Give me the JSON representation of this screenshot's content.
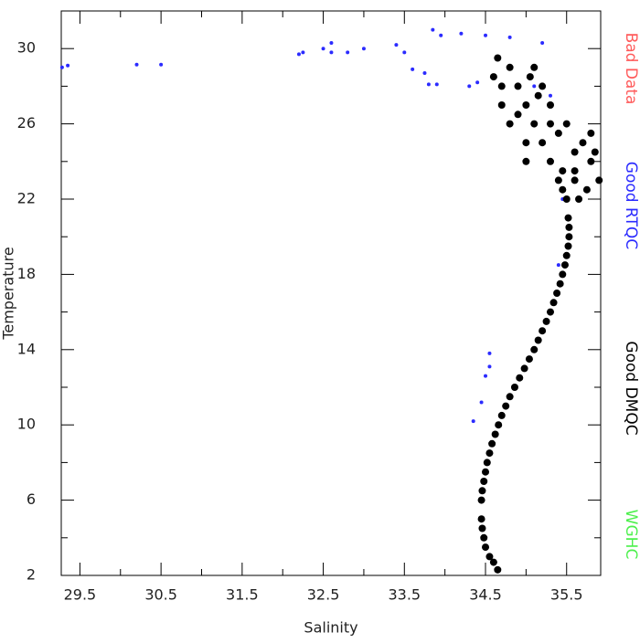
{
  "chart_data": {
    "type": "scatter",
    "x_label": "Salinity",
    "y_label": "Temperature",
    "xlim": [
      29.27,
      35.92
    ],
    "ylim": [
      2,
      32
    ],
    "xticks": [
      29.5,
      30.5,
      31.5,
      32.5,
      33.5,
      34.5,
      35.5
    ],
    "xminor": [
      30,
      31,
      32,
      33,
      34,
      35
    ],
    "yticks": [
      2,
      6,
      10,
      14,
      18,
      22,
      26,
      30
    ],
    "yminor": [
      4,
      8,
      12,
      16,
      20,
      24,
      28
    ],
    "series": [
      {
        "name": "Bad Data",
        "color": "#ff5a5a",
        "x": [],
        "values": []
      },
      {
        "name": "Good RTQC",
        "color": "#2b2bff",
        "x": [
          29.28,
          29.35,
          30.2,
          30.5,
          32.2,
          32.25,
          32.5,
          32.6,
          32.6,
          32.8,
          33.0,
          33.4,
          33.5,
          33.6,
          33.75,
          33.8,
          33.9,
          33.85,
          33.95,
          34.2,
          34.3,
          34.4,
          34.35,
          34.45,
          34.5,
          34.55,
          34.55,
          34.5,
          34.8,
          35.2,
          35.1,
          35.3,
          35.45,
          35.4
        ],
        "values": [
          29.0,
          29.1,
          29.15,
          29.15,
          29.7,
          29.8,
          30.0,
          30.3,
          29.8,
          29.8,
          30.0,
          30.2,
          29.8,
          28.9,
          28.7,
          28.1,
          28.1,
          31.0,
          30.7,
          30.8,
          28.0,
          28.2,
          10.2,
          11.2,
          12.6,
          13.1,
          13.8,
          30.7,
          30.6,
          30.3,
          28.0,
          27.5,
          22.0,
          18.5
        ]
      },
      {
        "name": "Good DMQC",
        "color": "#000000",
        "x": [
          34.65,
          34.6,
          34.55,
          34.5,
          34.48,
          34.46,
          34.45,
          34.45,
          34.46,
          34.48,
          34.5,
          34.52,
          34.55,
          34.58,
          34.62,
          34.66,
          34.7,
          34.75,
          34.8,
          34.86,
          34.92,
          34.98,
          35.04,
          35.1,
          35.15,
          35.2,
          35.25,
          35.3,
          35.34,
          35.38,
          35.42,
          35.45,
          35.48,
          35.5,
          35.52,
          35.53,
          35.53,
          35.52,
          35.5,
          35.45,
          35.4,
          35.3,
          35.2,
          35.1,
          35.0,
          34.9,
          34.8,
          35.6,
          35.8,
          35.9,
          35.7,
          35.5,
          35.3,
          34.6,
          34.7,
          35.0,
          34.9,
          35.2,
          35.4,
          35.6,
          35.8,
          35.1,
          34.7,
          35.0,
          35.3,
          35.6,
          35.75,
          35.85,
          34.8,
          35.15,
          35.45,
          35.65,
          34.65,
          35.05
        ],
        "values": [
          2.3,
          2.7,
          3.0,
          3.5,
          4.0,
          4.5,
          5.0,
          6.0,
          6.5,
          7.0,
          7.5,
          8.0,
          8.5,
          9.0,
          9.5,
          10.0,
          10.5,
          11.0,
          11.5,
          12.0,
          12.5,
          13.0,
          13.5,
          14.0,
          14.5,
          15.0,
          15.5,
          16.0,
          16.5,
          17.0,
          17.5,
          18.0,
          18.5,
          19.0,
          19.5,
          20.0,
          20.5,
          21.0,
          22.0,
          22.5,
          23.0,
          24.0,
          25.0,
          26.0,
          27.0,
          28.0,
          29.0,
          23.5,
          24.0,
          23.0,
          25.0,
          26.0,
          27.0,
          28.5,
          27.0,
          25.0,
          26.5,
          28.0,
          25.5,
          24.5,
          25.5,
          29.0,
          28.0,
          24.0,
          26.0,
          23.0,
          22.5,
          24.5,
          26.0,
          27.5,
          23.5,
          22.0,
          29.5,
          28.5
        ]
      },
      {
        "name": "WGHC",
        "color": "#4cf04c",
        "x": [],
        "values": []
      }
    ]
  }
}
